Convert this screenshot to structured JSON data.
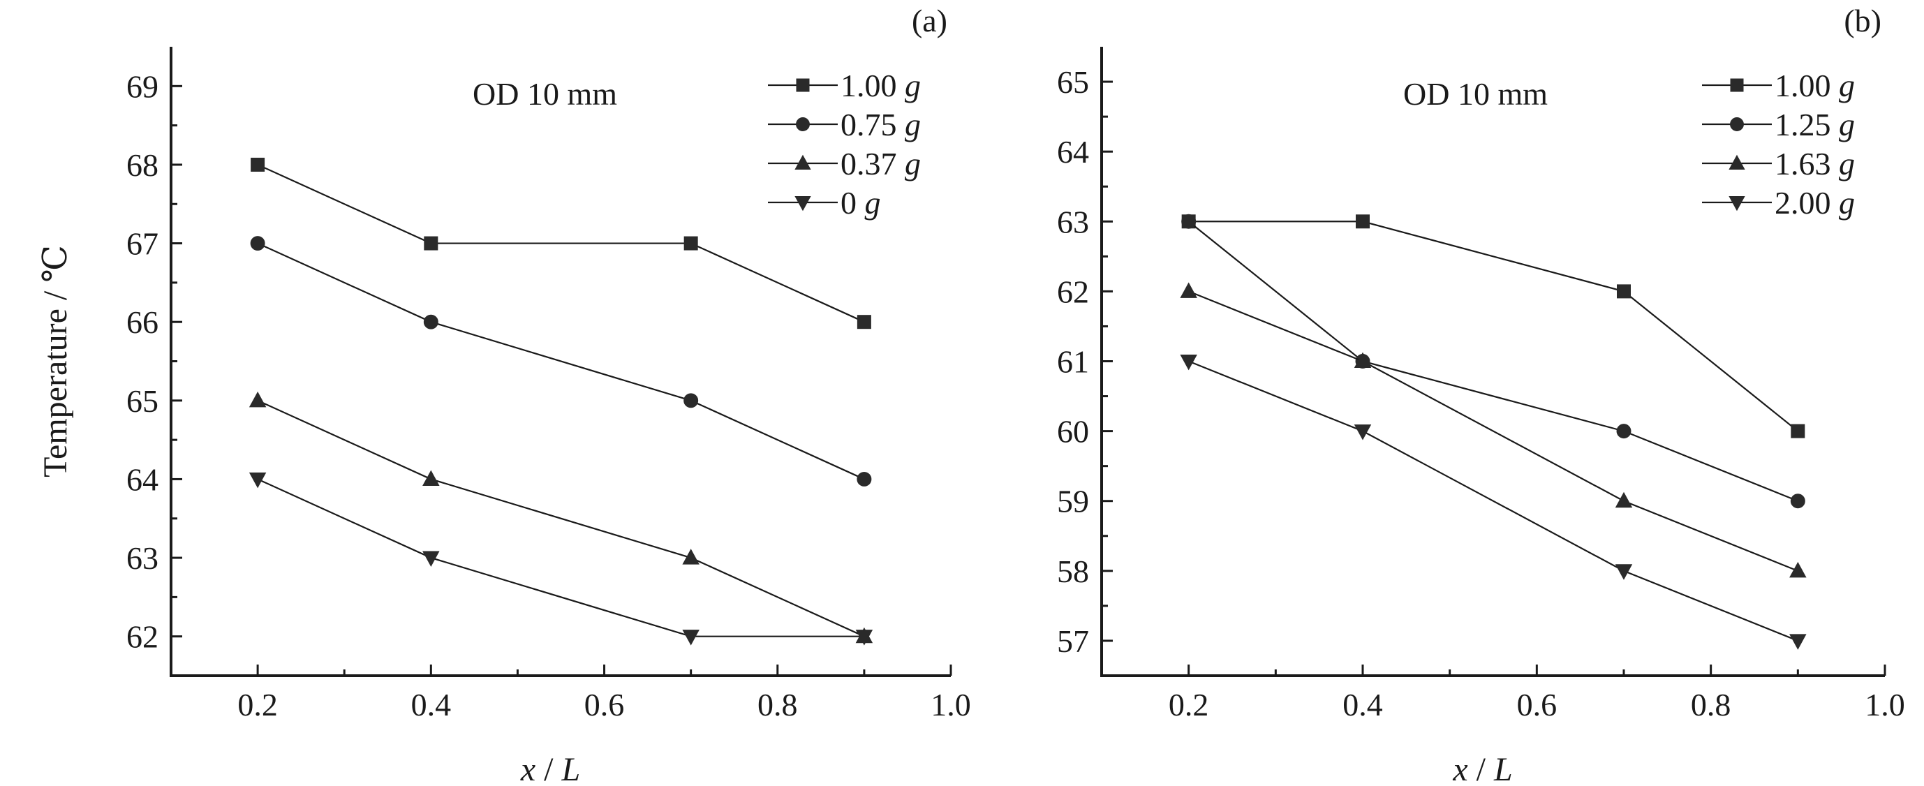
{
  "chart_data": [
    {
      "type": "line",
      "panel_label": "(a)",
      "annotation": "OD 10 mm",
      "ylabel": "Temperature / ℃",
      "xlabel_var": "x",
      "xlabel_sep": " / ",
      "xlabel_unit": "L",
      "xlim": [
        0.1,
        1.0
      ],
      "ylim": [
        61.5,
        69.5
      ],
      "xticks": [
        0.2,
        0.4,
        0.6,
        0.8,
        1.0
      ],
      "xtick_labels": [
        "0.2",
        "0.4",
        "0.6",
        "0.8",
        "1.0"
      ],
      "yticks": [
        62,
        63,
        64,
        65,
        66,
        67,
        68,
        69
      ],
      "ytick_labels": [
        "62",
        "63",
        "64",
        "65",
        "66",
        "67",
        "68",
        "69"
      ],
      "legend_position": "top-right",
      "x": [
        0.2,
        0.4,
        0.7,
        0.9
      ],
      "series": [
        {
          "label_num": "1.00",
          "label_unit": "g",
          "marker": "square",
          "values": [
            68,
            67,
            67,
            66
          ]
        },
        {
          "label_num": "0.75",
          "label_unit": "g",
          "marker": "circle",
          "values": [
            67,
            66,
            65,
            64
          ]
        },
        {
          "label_num": "0.37",
          "label_unit": "g",
          "marker": "triangle-up",
          "values": [
            65,
            64,
            63,
            62
          ]
        },
        {
          "label_num": "0",
          "label_unit": "g",
          "marker": "triangle-down",
          "values": [
            64,
            63,
            62,
            62
          ]
        }
      ]
    },
    {
      "type": "line",
      "panel_label": "(b)",
      "annotation": "OD 10 mm",
      "ylabel": "",
      "xlabel_var": "x",
      "xlabel_sep": " / ",
      "xlabel_unit": "L",
      "xlim": [
        0.1,
        1.0
      ],
      "ylim": [
        56.5,
        65.5
      ],
      "xticks": [
        0.2,
        0.4,
        0.6,
        0.8,
        1.0
      ],
      "xtick_labels": [
        "0.2",
        "0.4",
        "0.6",
        "0.8",
        "1.0"
      ],
      "yticks": [
        57,
        58,
        59,
        60,
        61,
        62,
        63,
        64,
        65
      ],
      "ytick_labels": [
        "57",
        "58",
        "59",
        "60",
        "61",
        "62",
        "63",
        "64",
        "65"
      ],
      "legend_position": "top-right",
      "x": [
        0.2,
        0.4,
        0.7,
        0.9
      ],
      "series": [
        {
          "label_num": "1.00",
          "label_unit": "g",
          "marker": "square",
          "values": [
            63,
            63,
            62,
            60
          ]
        },
        {
          "label_num": "1.25",
          "label_unit": "g",
          "marker": "circle",
          "values": [
            63,
            61,
            60,
            59
          ]
        },
        {
          "label_num": "1.63",
          "label_unit": "g",
          "marker": "triangle-up",
          "values": [
            62,
            61,
            59,
            58
          ]
        },
        {
          "label_num": "2.00",
          "label_unit": "g",
          "marker": "triangle-down",
          "values": [
            61,
            60,
            58,
            57
          ]
        }
      ]
    }
  ]
}
